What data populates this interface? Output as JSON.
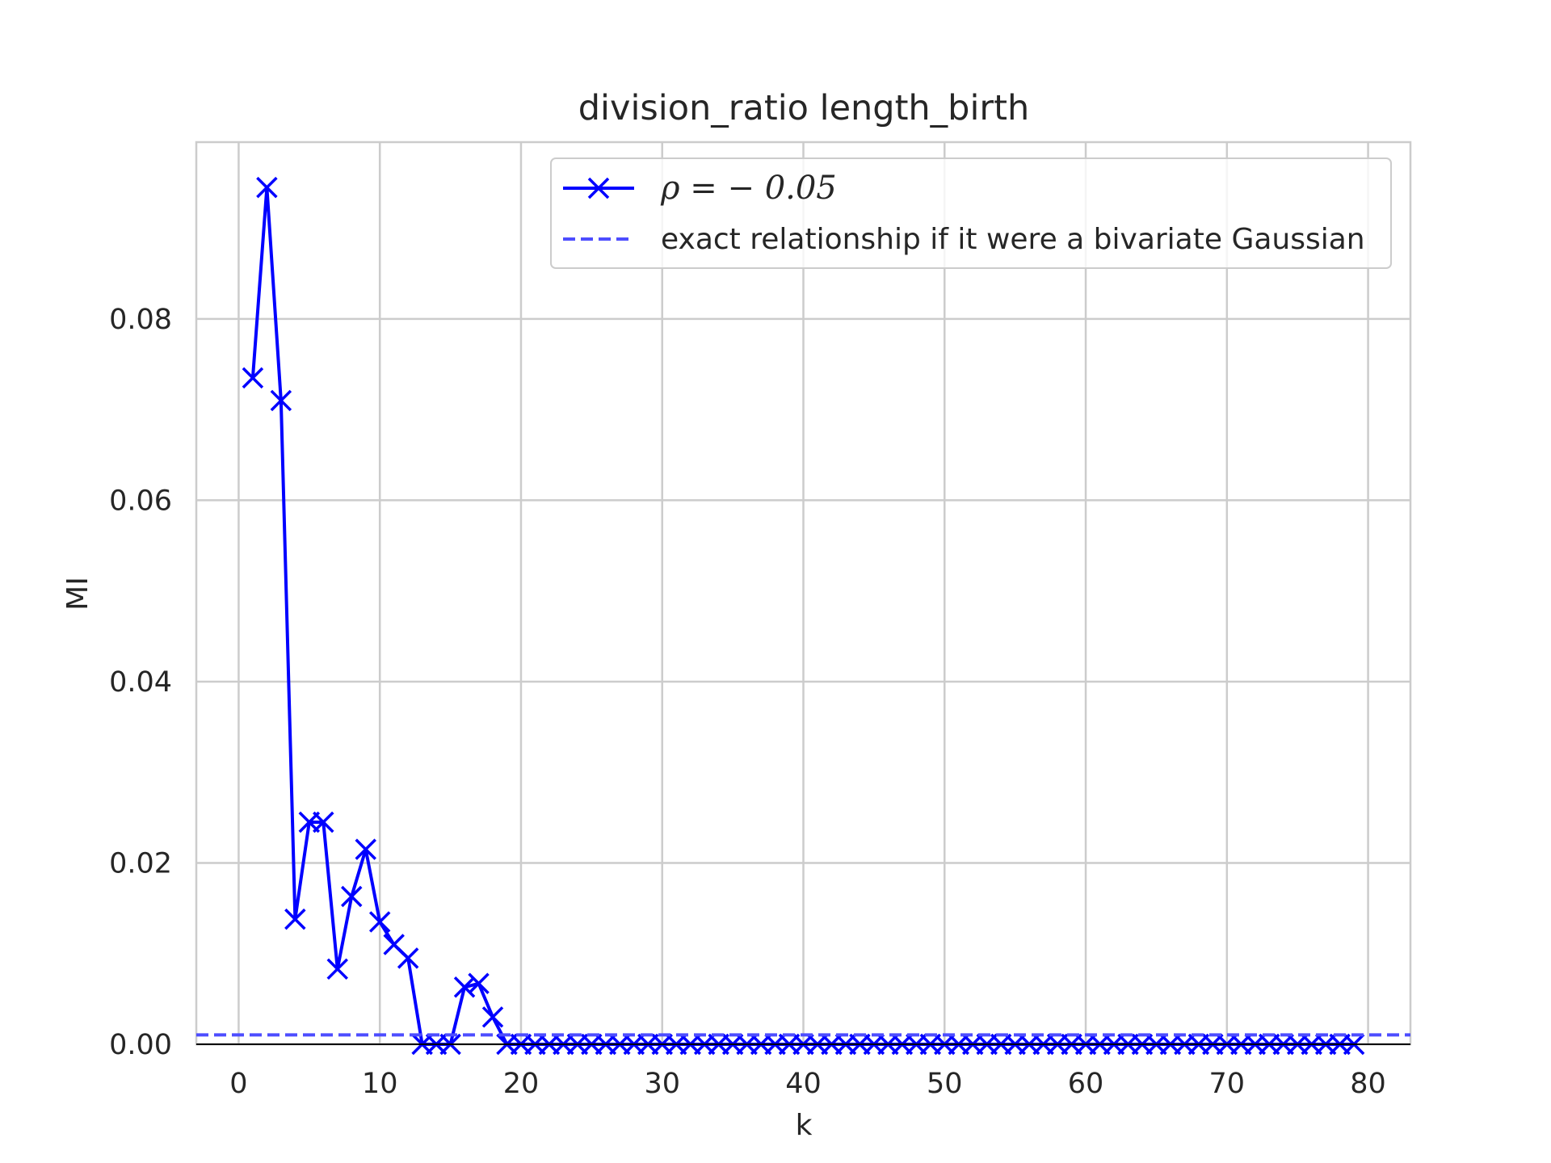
{
  "chart_data": {
    "type": "line",
    "title": "division_ratio length_birth",
    "xlabel": "k",
    "ylabel": "MI",
    "xlim": [
      -3,
      83
    ],
    "ylim": [
      0,
      0.0995
    ],
    "x_ticks": [
      0,
      10,
      20,
      30,
      40,
      50,
      60,
      70,
      80
    ],
    "x_tick_labels": [
      "0",
      "10",
      "20",
      "30",
      "40",
      "50",
      "60",
      "70",
      "80"
    ],
    "y_ticks": [
      0,
      0.02,
      0.04,
      0.06,
      0.08
    ],
    "y_tick_labels": [
      "0.00",
      "0.02",
      "0.04",
      "0.06",
      "0.08"
    ],
    "grid": true,
    "legend_position": "upper-right",
    "series": [
      {
        "name": "ρ = − 0.05",
        "style": "solid",
        "marker": "x",
        "color": "#0000ff",
        "x": [
          1,
          2,
          3,
          4,
          5,
          6,
          7,
          8,
          9,
          10,
          11,
          12,
          13,
          14,
          15,
          16,
          17,
          18,
          19,
          20,
          21,
          22,
          23,
          24,
          25,
          26,
          27,
          28,
          29,
          30,
          31,
          32,
          33,
          34,
          35,
          36,
          37,
          38,
          39,
          40,
          41,
          42,
          43,
          44,
          45,
          46,
          47,
          48,
          49,
          50,
          51,
          52,
          53,
          54,
          55,
          56,
          57,
          58,
          59,
          60,
          61,
          62,
          63,
          64,
          65,
          66,
          67,
          68,
          69,
          70,
          71,
          72,
          73,
          74,
          75,
          76,
          77,
          78,
          79
        ],
        "y": [
          0.0735,
          0.0945,
          0.071,
          0.0138,
          0.0245,
          0.0245,
          0.0083,
          0.0163,
          0.0215,
          0.0135,
          0.011,
          0.0095,
          0,
          0,
          0,
          0.0063,
          0.0067,
          0.003,
          0,
          0,
          0,
          0,
          0,
          0,
          0,
          0,
          0,
          0,
          0,
          0,
          0,
          0,
          0,
          0,
          0,
          0,
          0,
          0,
          0,
          0,
          0,
          0,
          0,
          0,
          0,
          0,
          0,
          0,
          0,
          0,
          0,
          0,
          0,
          0,
          0,
          0,
          0,
          0,
          0,
          0,
          0,
          0,
          0,
          0,
          0,
          0,
          0,
          0,
          0,
          0,
          0,
          0,
          0,
          0,
          0,
          0,
          0,
          0,
          0
        ]
      },
      {
        "name": "exact relationship if it were a bivariate Gaussian",
        "style": "dashed",
        "color": "#4d4dff",
        "x": [
          -3,
          83
        ],
        "y": [
          0.00104,
          0.00104
        ]
      }
    ]
  }
}
